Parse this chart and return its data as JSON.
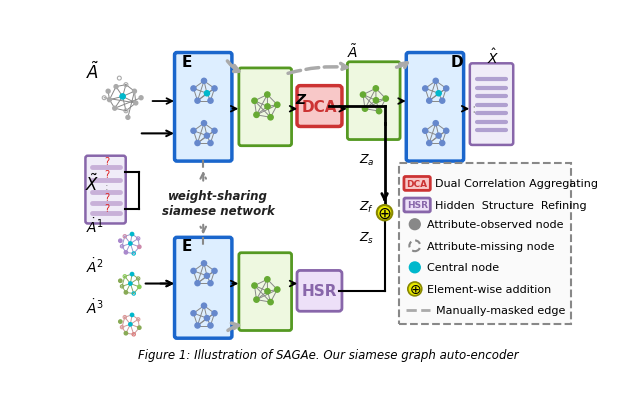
{
  "bg_color": "#ffffff",
  "fig_caption": "Figure 1: Illustration of SAGAe. Our siamese graph auto-encoder",
  "enc_label": "E",
  "dec_label": "D",
  "dca_label": "DCA",
  "hsr_label": "HSR",
  "A_tilde": "$\\tilde{A}$",
  "X_tilde": "$\\tilde{X}$",
  "X_hat": "$\\hat{X}$",
  "Z_label": "Z",
  "Za_label": "$Z_a$",
  "Zf_label": "$Z_f$",
  "Zs_label": "$Z_s$",
  "A_tilde_out": "$\\tilde{A}$",
  "wt_label": "weight-sharing\nsiamese network",
  "legend_dca_text": "Dual Correlation Aggregating",
  "legend_hsr_text": "Hidden  Structure  Refining",
  "legend_obs": "Attribute-observed node",
  "legend_miss": "Attribute-missing node",
  "legend_central": "Central node",
  "legend_elem": "Element-wise addition",
  "legend_mask": "Manually-masked edge",
  "A1_label": "$\\dot{A}^{1}$",
  "A2_label": "$\\dot{A}^{2}$",
  "A3_label": "$\\dot{A}^{3}$",
  "blue_enc": "#1a66cc",
  "blue_fill": "#ddeeff",
  "green_enc": "#559922",
  "green_fill": "#eef8e0",
  "red_dca": "#cc3333",
  "red_fill": "#f8c8c8",
  "purple_hsr": "#8866aa",
  "purple_fill": "#ede0f8",
  "gray_node": "#888888",
  "blue_node": "#6688cc",
  "cyan_node": "#00b8cc",
  "green_node": "#66aa33",
  "addition_fill": "#e8e800",
  "addition_edge": "#888800"
}
